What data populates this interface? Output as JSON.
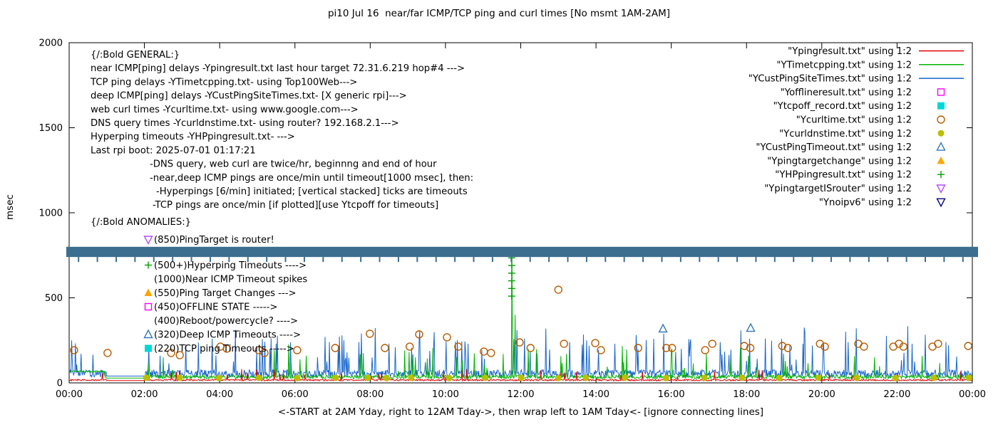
{
  "title": "pi10 Jul 16  near/far ICMP/TCP ping and curl times [No msmt 1AM-2AM]",
  "general": {
    "heading": "{/:Bold GENERAL:}",
    "lines": [
      {
        "text": "near ICMP[ping] delays -Ypingresult.txt last hour target 72.31.6.219 hop#4 --->",
        "indent": 0
      },
      {
        "text": "TCP ping delays -YTimetcpping.txt- using Top100Web--->",
        "indent": 0
      },
      {
        "text": "deep ICMP[ping] delays -YCustPingSiteTimes.txt- [X generic rpi]--->",
        "indent": 0
      },
      {
        "text": "web curl times -Ycurltime.txt- using www.google.com--->",
        "indent": 0
      },
      {
        "text": "DNS query times -Ycurldnstime.txt- using router? 192.168.2.1--->",
        "indent": 0
      },
      {
        "text": "Hyperping timeouts -YHPpingresult.txt- --->",
        "indent": 0
      },
      {
        "text": "Last rpi boot: 2025-07-01 01:17:21",
        "indent": 0
      },
      {
        "text": "-DNS query, web curl are twice/hr, beginnng and end of hour",
        "indent": 1
      },
      {
        "text": "-near,deep ICMP pings are once/min until timeout[1000 msec], then:",
        "indent": 1
      },
      {
        "text": "-Hyperpings [6/min] initiated; [vertical stacked] ticks are timeouts",
        "indent": 2
      },
      {
        "text": "-TCP pings are once/min [if plotted][use Ytcpoff for timeouts]",
        "indent": 3
      }
    ]
  },
  "anomalies": {
    "heading": "{/:Bold ANOMALIES:}",
    "items": [
      {
        "text": "(850)PingTarget is router!",
        "marker": "triangle-down-open",
        "color": "#b24dff"
      },
      {
        "text": "(500+)Hyperping Timeouts ---->",
        "marker": "plus",
        "color": "#00a000"
      },
      {
        "text": "(1000)Near ICMP Timeout spikes",
        "marker": "",
        "color": ""
      },
      {
        "text": "(550)Ping Target Changes --->",
        "marker": "triangle-up-filled",
        "color": "#ffa500"
      },
      {
        "text": "(450)OFFLINE STATE ----->",
        "marker": "square-open",
        "color": "#ff00ff"
      },
      {
        "text": "(400)Reboot/powercycle? ---->",
        "marker": "",
        "color": ""
      },
      {
        "text": "(320)Deep ICMP Timeouts ---->",
        "marker": "triangle-up-open",
        "color": "#3377bb"
      },
      {
        "text": "(220)TCP ping Timeouts ----->",
        "marker": "square-filled",
        "color": "#00d8d8"
      }
    ]
  },
  "chart_data": {
    "type": "line",
    "title": "pi10 Jul 16  near/far ICMP/TCP ping and curl times [No msmt 1AM-2AM]",
    "xlabel": "<-START at 2AM Yday, right to 12AM Tday->, then wrap left to 1AM Tday<- [ignore connecting lines]",
    "ylabel": "msec",
    "ylim": [
      0,
      2000
    ],
    "yticks": [
      0,
      500,
      1000,
      1500,
      2000
    ],
    "x_hours": 24,
    "xtick_labels": [
      "00:00",
      "02:00",
      "04:00",
      "06:00",
      "08:00",
      "10:00",
      "12:00",
      "14:00",
      "16:00",
      "18:00",
      "20:00",
      "22:00",
      "00:00"
    ],
    "grid": false,
    "legend_position": "top-right-inside",
    "noise_seed": 7,
    "legend": [
      {
        "label": "\"Ypingresult.txt\" using 1:2",
        "type": "line",
        "color": "#e00000"
      },
      {
        "label": "\"YTimetcpping.txt\" using 1:2",
        "type": "line",
        "color": "#00b400"
      },
      {
        "label": "\"YCustPingSiteTimes.txt\" using 1:2",
        "type": "line",
        "color": "#1a66cc"
      },
      {
        "label": "\"Yofflineresult.txt\" using 1:2",
        "type": "square-open",
        "color": "#ff00ff"
      },
      {
        "label": "\"Ytcpoff_record.txt\" using 1:2",
        "type": "square-filled",
        "color": "#00d8d8"
      },
      {
        "label": "\"Ycurltime.txt\" using 1:2",
        "type": "circle-open",
        "color": "#b85c00"
      },
      {
        "label": "\"Ycurldnstime.txt\" using 1:2",
        "type": "circle-filled",
        "color": "#bcbe00"
      },
      {
        "label": "\"YCustPingTimeout.txt\" using 1:2",
        "type": "triangle-up-open",
        "color": "#3377bb"
      },
      {
        "label": "\"Ypingtargetchange\" using 1:2",
        "type": "triangle-up-filled",
        "color": "#ffa500"
      },
      {
        "label": "\"YHPpingresult.txt\" using 1:2",
        "type": "plus",
        "color": "#00a000"
      },
      {
        "label": "\"YpingtargetISrouter\" using 1:2",
        "type": "triangle-down-open",
        "color": "#b24dff"
      },
      {
        "label": "\"Ynoipv6\" using 1:2",
        "type": "triangle-down-open",
        "color": "#000080"
      }
    ],
    "series_description": {
      "near_icmp_baseline_msec": [
        10,
        25
      ],
      "tcp_ping_baseline_msec": [
        25,
        60
      ],
      "deep_icmp_baseline_msec": [
        30,
        300
      ],
      "no_measurement_gap_hours": [
        1,
        2
      ],
      "tcp_elevated_start": {
        "hours": [
          0,
          0.95
        ],
        "msec": 65
      }
    },
    "features": {
      "noipv6_band": {
        "msec_top": 800,
        "msec_bottom": 740,
        "color": "#3c6e8f",
        "tick_interval_hours": 0.5
      },
      "curl_points": [
        [
          0.13,
          192
        ],
        [
          1.02,
          176
        ],
        [
          2.71,
          176
        ],
        [
          2.94,
          163
        ],
        [
          4.02,
          213
        ],
        [
          4.19,
          201
        ],
        [
          5.04,
          192
        ],
        [
          5.19,
          176
        ],
        [
          6.06,
          192
        ],
        [
          7.07,
          205
        ],
        [
          7.99,
          289
        ],
        [
          8.39,
          205
        ],
        [
          9.05,
          213
        ],
        [
          9.3,
          285
        ],
        [
          10.04,
          268
        ],
        [
          10.34,
          213
        ],
        [
          11.02,
          184
        ],
        [
          11.21,
          176
        ],
        [
          11.97,
          238
        ],
        [
          12.26,
          205
        ],
        [
          13.0,
          548
        ],
        [
          13.15,
          230
        ],
        [
          13.98,
          234
        ],
        [
          14.13,
          192
        ],
        [
          15.12,
          205
        ],
        [
          15.87,
          205
        ],
        [
          16.02,
          205
        ],
        [
          16.9,
          192
        ],
        [
          17.09,
          230
        ],
        [
          17.94,
          217
        ],
        [
          18.1,
          205
        ],
        [
          18.95,
          217
        ],
        [
          19.1,
          205
        ],
        [
          19.95,
          230
        ],
        [
          20.08,
          213
        ],
        [
          20.97,
          230
        ],
        [
          21.12,
          213
        ],
        [
          21.9,
          213
        ],
        [
          22.05,
          230
        ],
        [
          22.17,
          213
        ],
        [
          22.94,
          213
        ],
        [
          23.09,
          230
        ],
        [
          23.89,
          217
        ]
      ],
      "dns_points": [
        [
          2.05,
          30
        ],
        [
          2.94,
          30
        ],
        [
          3.98,
          28
        ],
        [
          5.04,
          30
        ],
        [
          6.06,
          28
        ],
        [
          7.08,
          30
        ],
        [
          7.94,
          30
        ],
        [
          8.43,
          28
        ],
        [
          9.09,
          30
        ],
        [
          10.1,
          28
        ],
        [
          11.06,
          30
        ],
        [
          12.01,
          30
        ],
        [
          13.0,
          28
        ],
        [
          13.73,
          30
        ],
        [
          14.77,
          30
        ],
        [
          15.86,
          28
        ],
        [
          16.88,
          30
        ],
        [
          17.88,
          30
        ],
        [
          18.87,
          28
        ],
        [
          19.91,
          30
        ],
        [
          20.93,
          30
        ],
        [
          21.96,
          28
        ],
        [
          22.98,
          30
        ],
        [
          23.91,
          30
        ]
      ],
      "deep_timeout_points": [
        [
          15.78,
          318
        ],
        [
          18.11,
          322
        ]
      ],
      "hyperping_ticks": [
        [
          11.76,
          510
        ],
        [
          11.76,
          555
        ],
        [
          11.76,
          600
        ],
        [
          11.76,
          645
        ],
        [
          11.76,
          690
        ],
        [
          11.76,
          735
        ]
      ],
      "green_spikes": [
        [
          2.5,
          150
        ],
        [
          6.3,
          160
        ],
        [
          9.2,
          150
        ],
        [
          11.76,
          755
        ],
        [
          11.85,
          400
        ],
        [
          12.2,
          200
        ],
        [
          16.0,
          190
        ],
        [
          18.05,
          160
        ],
        [
          21.4,
          150
        ]
      ],
      "blue_spikes": [
        [
          0.07,
          250
        ],
        [
          3.8,
          260
        ],
        [
          5.5,
          230
        ],
        [
          7.7,
          240
        ],
        [
          9.3,
          250
        ],
        [
          10.6,
          230
        ],
        [
          11.9,
          310
        ],
        [
          12.1,
          260
        ],
        [
          13.3,
          240
        ],
        [
          14.5,
          230
        ],
        [
          15.8,
          290
        ],
        [
          17.3,
          240
        ],
        [
          18.08,
          260
        ],
        [
          19.5,
          230
        ],
        [
          20.7,
          240
        ],
        [
          22.4,
          230
        ],
        [
          23.3,
          240
        ]
      ],
      "red_spikes": [
        [
          4.2,
          45
        ],
        [
          13.05,
          60
        ],
        [
          20.2,
          50
        ]
      ]
    }
  }
}
